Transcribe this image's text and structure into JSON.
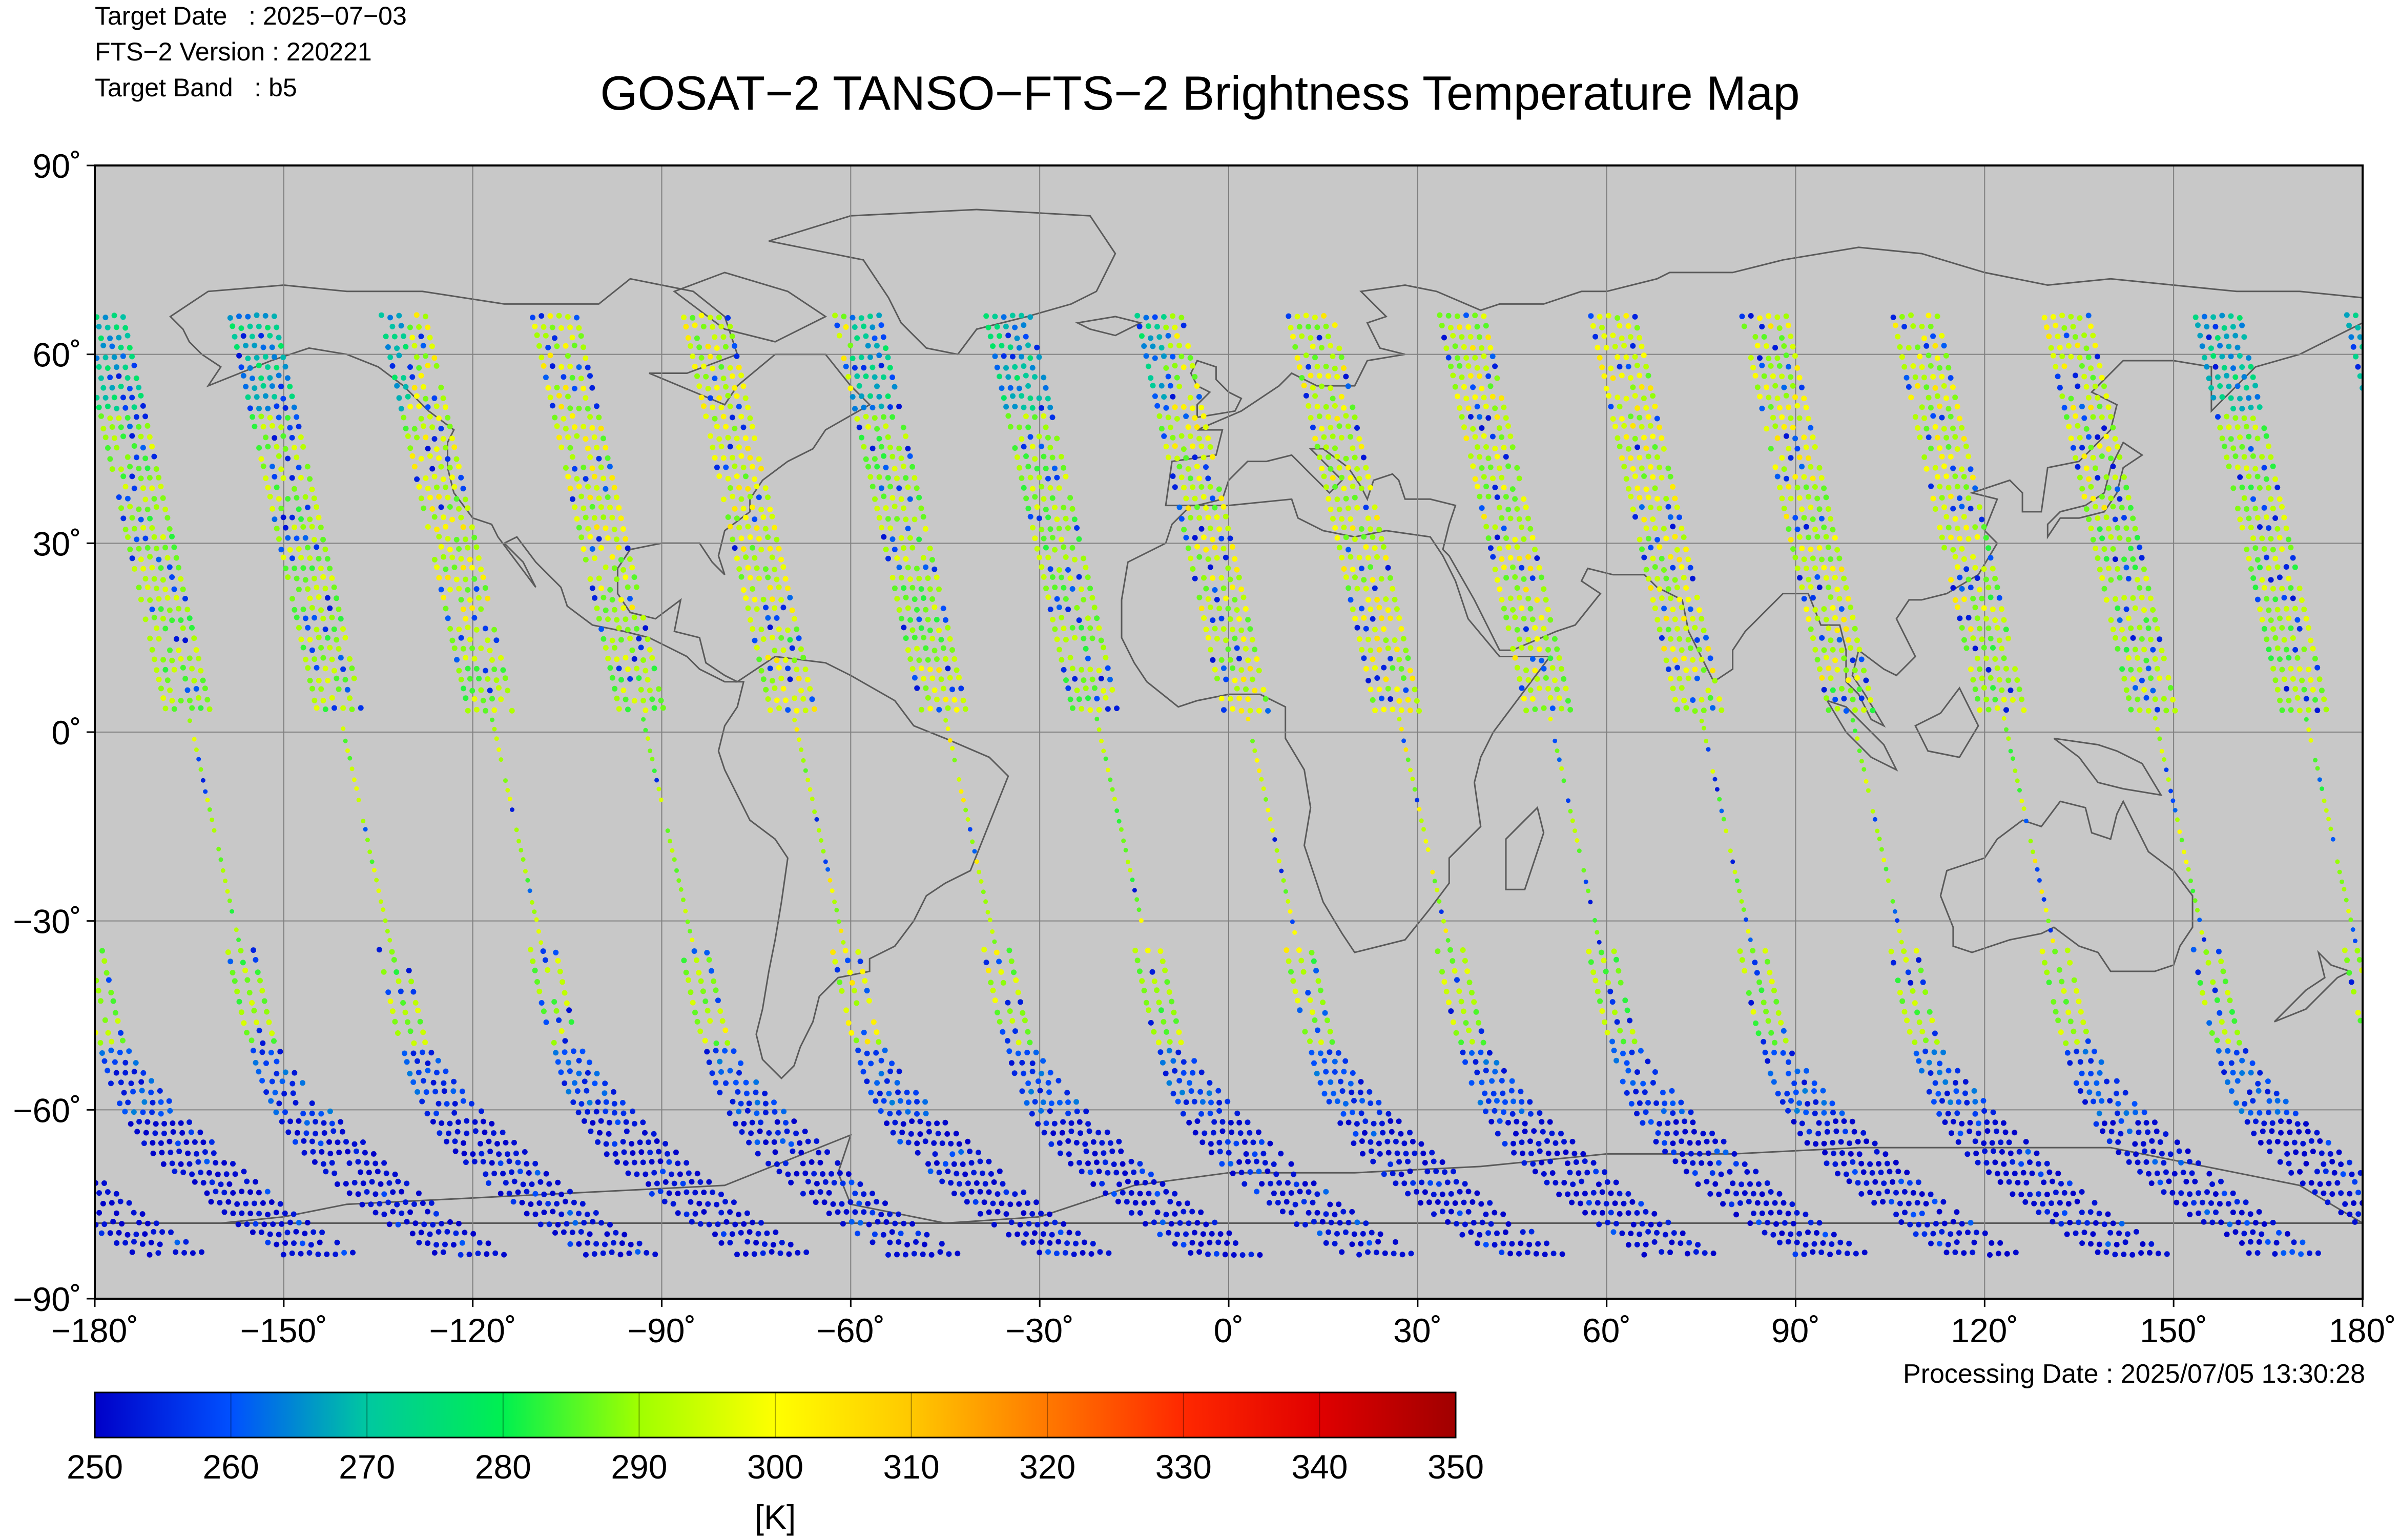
{
  "header": {
    "target_date": "Target Date   : 2025−07−03",
    "fts_version": "FTS−2 Version : 220221",
    "target_band": "Target Band   : b5"
  },
  "title": "GOSAT−2 TANSO−FTS−2 Brightness Temperature Map",
  "processing_date": "Processing Date : 2025/07/05 13:30:28",
  "map": {
    "lon_range": [
      -180,
      180
    ],
    "lat_range": [
      -90,
      90
    ],
    "lon_ticks": [
      "−180˚",
      "−150˚",
      "−120˚",
      "−90˚",
      "−60˚",
      "−30˚",
      "0˚",
      "30˚",
      "60˚",
      "90˚",
      "120˚",
      "150˚",
      "180˚"
    ],
    "lat_ticks": [
      "90˚",
      "60˚",
      "30˚",
      "0˚",
      "−30˚",
      "−60˚",
      "−90˚"
    ],
    "grid": true,
    "background_color": "#c8c8c8",
    "grid_color": "#808080",
    "coastline_color": "#5a5a5a"
  },
  "colorbar": {
    "min": 250,
    "max": 350,
    "tick_labels": [
      "250",
      "260",
      "270",
      "280",
      "290",
      "300",
      "310",
      "320",
      "330",
      "340",
      "350"
    ],
    "unit": "[K]",
    "stops": [
      "#0000c8",
      "#0050ff",
      "#00c8a0",
      "#00f050",
      "#a0ff00",
      "#ffff00",
      "#ffc800",
      "#ff7800",
      "#ff2800",
      "#e00000",
      "#a00000"
    ]
  },
  "chart_data": {
    "type": "scatter",
    "description_units": "longitude (deg), latitude (deg), brightness temperature (K)",
    "swath_count": 15,
    "xlim": [
      -180,
      180
    ],
    "ylim": [
      -90,
      90
    ],
    "color_range": [
      250,
      350
    ]
  }
}
